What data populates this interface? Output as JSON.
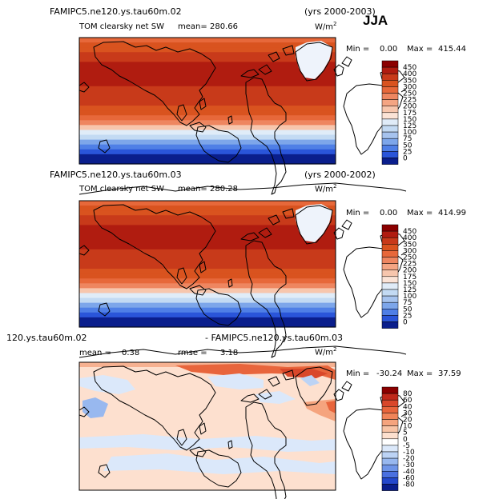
{
  "season": "JJA",
  "chart_data": [
    {
      "type": "heatmap",
      "case": "FAMIPC5.ne120.ys.tau60m.02",
      "years": "(yrs 2000-2003)",
      "variable": "TOM clearsky net SW",
      "mean_label": "mean=",
      "mean": "280.66",
      "units_base": "W/m",
      "units_exp": "2",
      "min_label": "Min =",
      "min": "0.00",
      "max_label": "Max =",
      "max": "415.44",
      "colorbar_levels": [
        "450",
        "400",
        "350",
        "300",
        "250",
        "225",
        "200",
        "175",
        "150",
        "125",
        "100",
        "75",
        "50",
        "25",
        "0"
      ],
      "colorbar_colors": [
        "#8b0000",
        "#b01c10",
        "#c83a1a",
        "#d9531f",
        "#e7683a",
        "#ee8660",
        "#f4a583",
        "#f7c6ad",
        "#fbe3d6",
        "#e0ecf8",
        "#c3daf3",
        "#a6c3ee",
        "#7da6ea",
        "#4f7fe6",
        "#2a55d9",
        "#0a1e8c"
      ],
      "lat_bands_color_index": [
        4,
        3,
        3,
        2,
        2,
        1,
        1,
        1,
        1,
        1,
        2,
        2,
        2,
        2,
        3,
        3,
        4,
        5,
        7,
        9,
        10,
        12,
        13,
        14,
        15,
        15
      ]
    },
    {
      "type": "heatmap",
      "case": "FAMIPC5.ne120.ys.tau60m.03",
      "years": "(yrs 2000-2002)",
      "variable": "TOM clearsky net SW",
      "mean_label": "mean=",
      "mean": "280.28",
      "units_base": "W/m",
      "units_exp": "2",
      "min_label": "Min =",
      "min": "0.00",
      "max_label": "Max =",
      "max": "414.99",
      "colorbar_levels": [
        "450",
        "400",
        "350",
        "300",
        "250",
        "225",
        "200",
        "175",
        "150",
        "125",
        "100",
        "75",
        "50",
        "25",
        "0"
      ],
      "colorbar_colors": [
        "#8b0000",
        "#b01c10",
        "#c83a1a",
        "#d9531f",
        "#e7683a",
        "#ee8660",
        "#f4a583",
        "#f7c6ad",
        "#fbe3d6",
        "#e0ecf8",
        "#c3daf3",
        "#a6c3ee",
        "#7da6ea",
        "#4f7fe6",
        "#2a55d9",
        "#0a1e8c"
      ],
      "lat_bands_color_index": [
        4,
        3,
        3,
        2,
        2,
        1,
        1,
        1,
        1,
        1,
        2,
        2,
        2,
        2,
        3,
        3,
        4,
        5,
        7,
        9,
        10,
        12,
        13,
        14,
        15,
        15
      ]
    },
    {
      "type": "heatmap",
      "case": "120.ys.tau60m.02",
      "years": "- FAMIPC5.ne120.ys.tau60m.03",
      "variable": "",
      "mean_label": "mean =",
      "mean": "0.38",
      "rmse_label": "rmse =",
      "rmse": "3.18",
      "units_base": "W/m",
      "units_exp": "2",
      "min_label": "Min =",
      "min": "-30.24",
      "max_label": "Max =",
      "max": "37.59",
      "colorbar_levels": [
        "80",
        "60",
        "40",
        "30",
        "20",
        "10",
        "5",
        "0",
        "-5",
        "-10",
        "-20",
        "-30",
        "-40",
        "-60",
        "-80"
      ],
      "colorbar_colors": [
        "#8b0000",
        "#c0281a",
        "#d9472a",
        "#e8653c",
        "#f08459",
        "#f5a47e",
        "#f8c4a6",
        "#fde0cf",
        "#ffffff",
        "#dbe8fa",
        "#bcd3f5",
        "#98b8ef",
        "#6f95e8",
        "#4a70e0",
        "#2448cc",
        "#0a1e8c"
      ]
    }
  ]
}
